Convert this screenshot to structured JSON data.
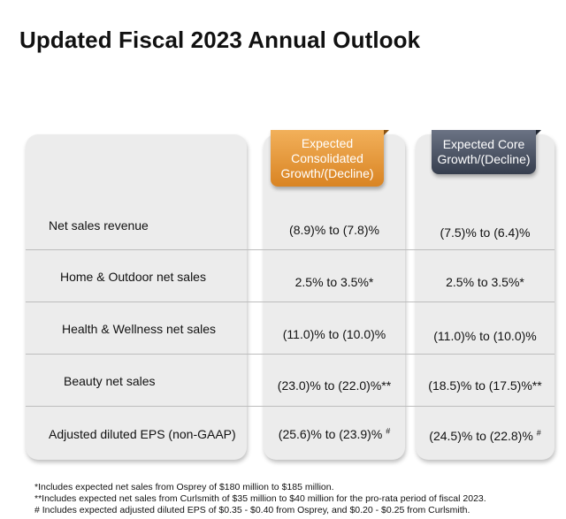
{
  "title": "Updated Fiscal 2023 Annual Outlook",
  "columns": {
    "consolidated": "Expected Consolidated Growth/(Decline)",
    "core": "Expected Core Growth/(Decline)"
  },
  "rows": [
    {
      "label": "Net sales revenue",
      "consolidated": "(8.9)% to (7.8)%",
      "cons_mark": "",
      "core": "(7.5)% to (6.4)%",
      "core_mark": ""
    },
    {
      "label": "Home & Outdoor net sales",
      "consolidated": "2.5% to 3.5%*",
      "cons_mark": "",
      "core": "2.5% to 3.5%*",
      "core_mark": ""
    },
    {
      "label": "Health & Wellness net sales",
      "consolidated": "(11.0)% to (10.0)%",
      "cons_mark": "",
      "core": "(11.0)% to (10.0)%",
      "core_mark": ""
    },
    {
      "label": "Beauty net sales",
      "consolidated": "(23.0)% to (22.0)%**",
      "cons_mark": "",
      "core": "(18.5)% to (17.5)%**",
      "core_mark": ""
    },
    {
      "label": "Adjusted diluted EPS (non-GAAP)",
      "consolidated": "(25.6)% to (23.9)% ",
      "cons_mark": "#",
      "core": "(24.5)% to (22.8)% ",
      "core_mark": "#"
    }
  ],
  "footnotes": [
    "*Includes expected net sales from Osprey of $180 million to $185 million.",
    "**Includes expected net sales from Curlsmith of $35 million to $40 million for the pro-rata period of fiscal 2023.",
    "# Includes expected adjusted diluted EPS of $0.35 - $0.40 from Osprey, and $0.20 - $0.25 from Curlsmith."
  ],
  "colors": {
    "consolidated_tab": "#e0902e",
    "core_tab": "#4a5264",
    "panel": "#ececec"
  }
}
